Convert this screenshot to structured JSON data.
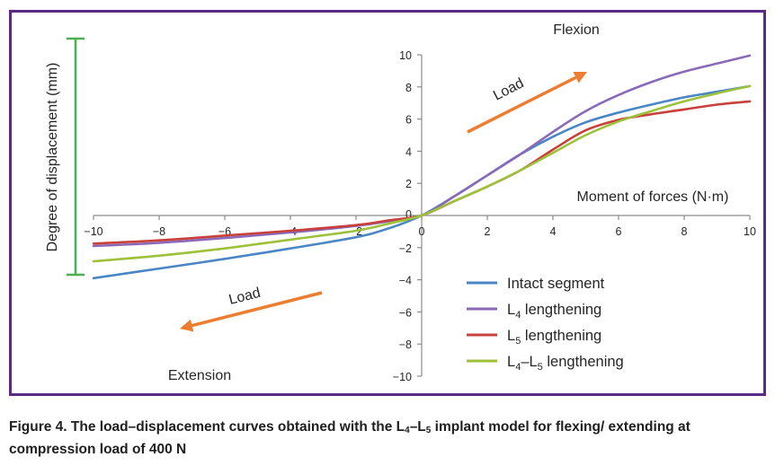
{
  "chart_data": {
    "type": "line",
    "title": "",
    "xlabel": "Moment of forces (N·m)",
    "ylabel": "Degree of displacement (mm)",
    "xlim": [
      -10,
      10
    ],
    "ylim": [
      -10,
      10
    ],
    "x_ticks": [
      -10,
      -8,
      -6,
      -4,
      -2,
      0,
      2,
      4,
      6,
      8,
      10
    ],
    "y_ticks": [
      -10,
      -8,
      -6,
      -4,
      -2,
      0,
      2,
      4,
      6,
      8,
      10
    ],
    "x_tick_labels": [
      "−10",
      "−8",
      "−6",
      "−4",
      "−2",
      "0",
      "2",
      "4",
      "6",
      "8",
      "10"
    ],
    "y_tick_labels": [
      "−10",
      "−8",
      "−6",
      "−4",
      "−2",
      "0",
      "2",
      "4",
      "6",
      "8",
      "10"
    ],
    "grid": false,
    "legend_position": "bottom-center",
    "annotations": {
      "flexion": "Flexion",
      "extension": "Extension",
      "load": "Load"
    },
    "series": [
      {
        "name": "Intact segment",
        "color": "#4a86c5",
        "x": [
          -10,
          -8,
          -6,
          -4,
          -2,
          -1,
          0,
          1,
          2,
          3,
          4,
          5,
          6,
          7,
          8,
          9,
          10
        ],
        "y": [
          -3.9,
          -3.3,
          -2.7,
          -2.05,
          -1.35,
          -0.8,
          0,
          1.2,
          2.5,
          3.8,
          4.9,
          5.8,
          6.4,
          6.9,
          7.35,
          7.7,
          8.05
        ]
      },
      {
        "name": "L4 lengthening",
        "color": "#8a6ab8",
        "x": [
          -10,
          -8,
          -6,
          -4,
          -2,
          -1,
          0,
          1,
          2,
          3,
          4,
          5,
          6,
          7,
          8,
          9,
          10
        ],
        "y": [
          -1.9,
          -1.7,
          -1.4,
          -1.05,
          -0.65,
          -0.35,
          0,
          1.2,
          2.5,
          3.8,
          5.2,
          6.5,
          7.5,
          8.3,
          8.95,
          9.45,
          9.95
        ]
      },
      {
        "name": "L5 lengthening",
        "color": "#c9403a",
        "x": [
          -10,
          -8,
          -6,
          -4,
          -2,
          -1,
          0,
          1,
          2,
          3,
          4,
          5,
          6,
          7,
          8,
          9,
          10
        ],
        "y": [
          -1.75,
          -1.55,
          -1.25,
          -0.95,
          -0.6,
          -0.3,
          0,
          0.9,
          1.8,
          2.8,
          4.1,
          5.3,
          5.95,
          6.3,
          6.6,
          6.9,
          7.1
        ]
      },
      {
        "name": "L4–L5 lengthening",
        "color": "#9dc23a",
        "x": [
          -10,
          -8,
          -6,
          -4,
          -2,
          -1,
          0,
          1,
          2,
          3,
          4,
          5,
          6,
          7,
          8,
          9,
          10
        ],
        "y": [
          -2.85,
          -2.5,
          -2.05,
          -1.5,
          -0.95,
          -0.5,
          0,
          0.9,
          1.8,
          2.8,
          3.9,
          5.0,
          5.85,
          6.5,
          7.1,
          7.6,
          8.05
        ]
      }
    ]
  },
  "legend": {
    "items": [
      {
        "base": "Intact segment",
        "sub1": "",
        "mid": "",
        "sub2": "",
        "rest": "",
        "color": "#4a86c5"
      },
      {
        "base": "L",
        "sub1": "4",
        "mid": " lengthening",
        "sub2": "",
        "rest": "",
        "color": "#8a6ab8"
      },
      {
        "base": "L",
        "sub1": "5",
        "mid": " lengthening",
        "sub2": "",
        "rest": "",
        "color": "#c9403a"
      },
      {
        "base": "L",
        "sub1": "4",
        "mid": "–L",
        "sub2": "5",
        "rest": " lengthening",
        "color": "#9dc23a"
      }
    ]
  },
  "colors": {
    "frame": "#5b2a86",
    "arrow": "#ed7d31",
    "bracket": "#4caf50",
    "axis": "#8c8c8c",
    "text": "#262626"
  },
  "caption": {
    "part1": "Figure 4. The load–displacement curves obtained with the L",
    "sub1": "4",
    "part2": "–L",
    "sub2": "5",
    "part3": " implant model for flexing/ extending at compression load of 400 N"
  }
}
